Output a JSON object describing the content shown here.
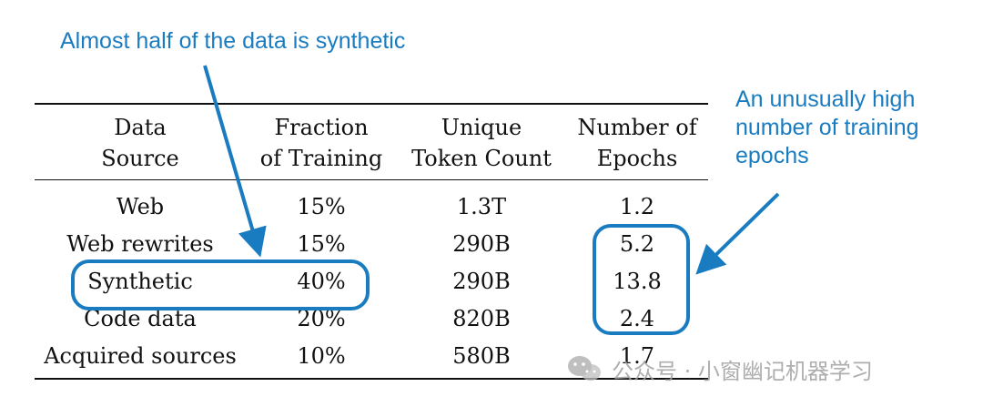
{
  "annotations": {
    "left_callout": "Almost half of the data is synthetic",
    "right_callout_lines": [
      "An unusually high",
      "number of training",
      "epochs"
    ]
  },
  "table": {
    "headers": [
      [
        "Data",
        "Source"
      ],
      [
        "Fraction",
        "of Training"
      ],
      [
        "Unique",
        "Token Count"
      ],
      [
        "Number of",
        "Epochs"
      ]
    ],
    "rows": [
      [
        "Web",
        "15%",
        "1.3T",
        "1.2"
      ],
      [
        "Web rewrites",
        "15%",
        "290B",
        "5.2"
      ],
      [
        "Synthetic",
        "40%",
        "290B",
        "13.8"
      ],
      [
        "Code data",
        "20%",
        "820B",
        "2.4"
      ],
      [
        "Acquired sources",
        "10%",
        "580B",
        "1.7"
      ]
    ]
  },
  "watermark": {
    "text": "公众号 · 小窗幽记机器学习",
    "icon": "wechat-icon"
  },
  "colors": {
    "accent": "#1a7cc0",
    "text": "#111111",
    "watermark": "#a0a0a0"
  }
}
